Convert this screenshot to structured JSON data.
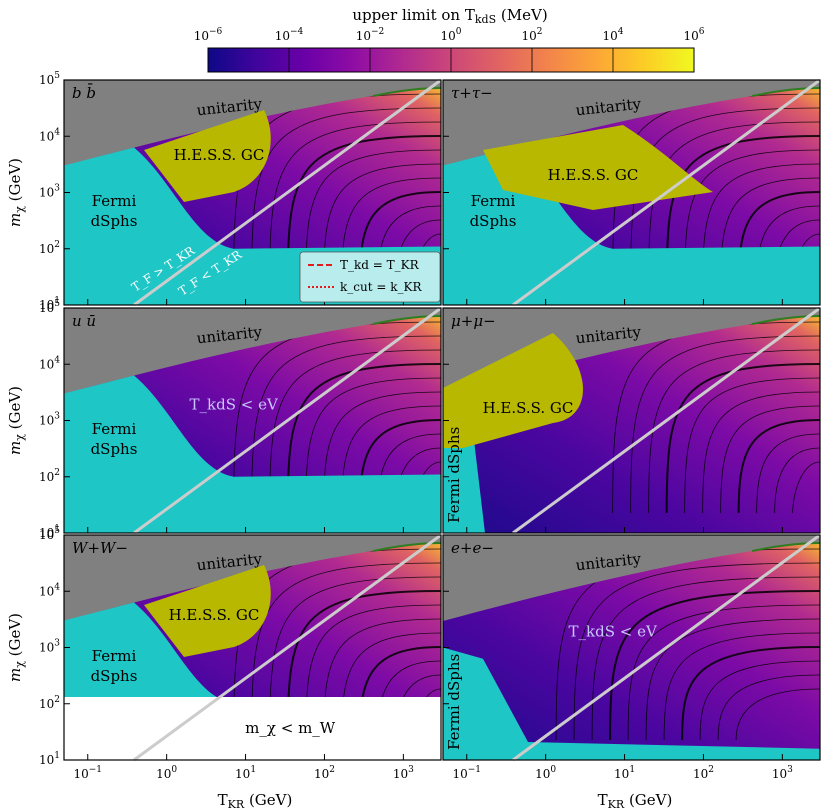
{
  "chart_data": {
    "type": "heatmap",
    "title": "upper limit on T_kdS (MeV)",
    "colorbar": {
      "label": "upper limit on T_kdS (MeV)",
      "ticks": [
        "10^-6",
        "10^-4",
        "10^-2",
        "10^0",
        "10^2",
        "10^4",
        "10^6"
      ],
      "range_log10": [
        -6,
        6
      ],
      "colors": [
        "#0d0887",
        "#41049d",
        "#6a00a8",
        "#8f0da4",
        "#b12a90",
        "#cc4778",
        "#e16462",
        "#f2844b",
        "#fca636",
        "#fcce25",
        "#f0f921"
      ]
    },
    "x_axis": {
      "label": "T_KR (GeV)",
      "scale": "log",
      "range": [
        0.05,
        3000
      ],
      "ticks": [
        "10^-1",
        "10^0",
        "10^1",
        "10^2",
        "10^3"
      ]
    },
    "y_axis": {
      "label": "m_χ (GeV)",
      "scale": "log",
      "range": [
        10,
        100000
      ],
      "ticks": [
        "10^1",
        "10^2",
        "10^3",
        "10^4",
        "10^5"
      ]
    },
    "legend": [
      {
        "label": "T_kd = T_KR",
        "style": "dashed",
        "color": "#e41a1c"
      },
      {
        "label": "k_cut = k_KR",
        "style": "dotted",
        "color": "#e41a1c"
      }
    ],
    "diagonal_labels": [
      "T_F > T_KR",
      "T_F < T_KR"
    ],
    "panels": [
      {
        "channel": "b b̄",
        "labels": {
          "unitarity": "unitarity",
          "hess": "H.E.S.S. GC",
          "fermi": "Fermi dSphs"
        }
      },
      {
        "channel": "τ+τ−",
        "labels": {
          "unitarity": "unitarity",
          "hess": "H.E.S.S. GC",
          "fermi": "Fermi dSphs"
        }
      },
      {
        "channel": "u ū",
        "labels": {
          "unitarity": "unitarity",
          "tkds": "T_kdS < eV",
          "fermi": "Fermi dSphs"
        }
      },
      {
        "channel": "μ+μ−",
        "labels": {
          "unitarity": "unitarity",
          "hess": "H.E.S.S. GC",
          "fermi": "Fermi dSphs"
        }
      },
      {
        "channel": "W+W−",
        "labels": {
          "unitarity": "unitarity",
          "hess": "H.E.S.S. GC",
          "fermi": "Fermi dSphs",
          "mw": "m_χ < m_W"
        }
      },
      {
        "channel": "e+e−",
        "labels": {
          "unitarity": "unitarity",
          "tkds": "T_kdS < eV",
          "fermi": "Fermi dSphs"
        }
      }
    ]
  }
}
